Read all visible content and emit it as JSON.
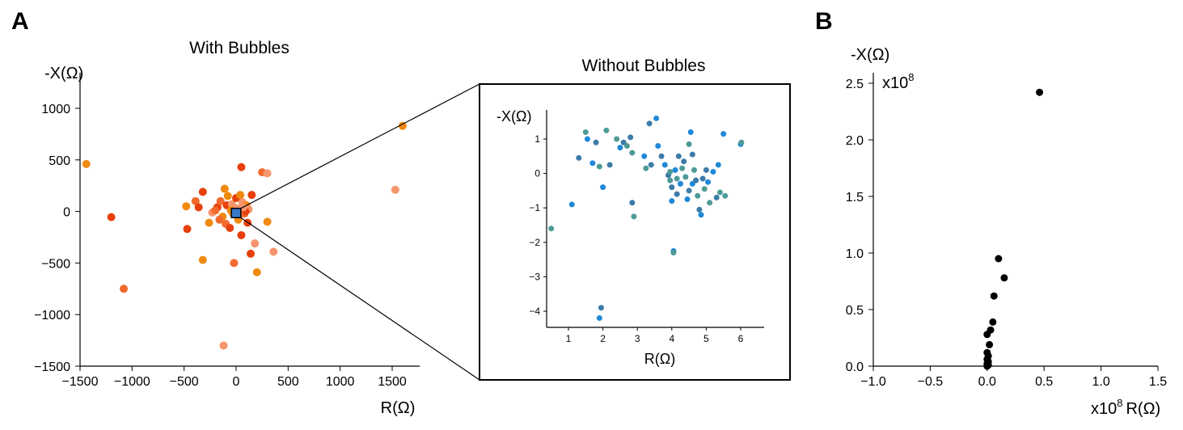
{
  "panels": {
    "a_letter": "A",
    "b_letter": "B"
  },
  "chart_data": [
    {
      "id": "with_bubbles",
      "type": "scatter",
      "title": "With Bubbles",
      "xlabel": "R(Ω)",
      "ylabel": "-X(Ω)",
      "xlim": [
        -1500,
        1750
      ],
      "ylim": [
        -1500,
        1350
      ],
      "xticks": [
        -1500,
        -1000,
        -500,
        0,
        500,
        1000,
        1500
      ],
      "xtick_labels": [
        "−1500",
        "−1000",
        "−500",
        "0",
        "500",
        "1000",
        "1500"
      ],
      "yticks": [
        -1500,
        -1000,
        -500,
        0,
        500,
        1000
      ],
      "ytick_labels": [
        "−1500",
        "−1000",
        "−500",
        "0",
        "500",
        "1000"
      ],
      "zoom_box": [
        -45,
        45,
        -60,
        30
      ],
      "colors": [
        "#e8400c",
        "#f08a0f",
        "#f7956c",
        "#f26a2d"
      ],
      "points": [
        [
          -1440,
          460,
          1
        ],
        [
          -1200,
          -55,
          0
        ],
        [
          -1080,
          -750,
          3
        ],
        [
          1600,
          830,
          1
        ],
        [
          1530,
          210,
          2
        ],
        [
          -470,
          -170,
          0
        ],
        [
          -480,
          50,
          1
        ],
        [
          -390,
          100,
          3
        ],
        [
          -360,
          40,
          0
        ],
        [
          -320,
          -470,
          1
        ],
        [
          -320,
          190,
          0
        ],
        [
          -230,
          -10,
          2
        ],
        [
          -180,
          40,
          0
        ],
        [
          -150,
          100,
          3
        ],
        [
          -130,
          -50,
          1
        ],
        [
          -110,
          220,
          1
        ],
        [
          -100,
          -120,
          3
        ],
        [
          -90,
          60,
          0
        ],
        [
          -60,
          -160,
          0
        ],
        [
          -40,
          70,
          2
        ],
        [
          -30,
          -20,
          1
        ],
        [
          -20,
          -500,
          3
        ],
        [
          0,
          130,
          0
        ],
        [
          10,
          30,
          2
        ],
        [
          20,
          -80,
          1
        ],
        [
          40,
          160,
          1
        ],
        [
          50,
          430,
          0
        ],
        [
          50,
          -230,
          0
        ],
        [
          60,
          90,
          2
        ],
        [
          80,
          -20,
          3
        ],
        [
          100,
          60,
          1
        ],
        [
          110,
          -110,
          0
        ],
        [
          120,
          20,
          2
        ],
        [
          140,
          -410,
          0
        ],
        [
          150,
          160,
          0
        ],
        [
          180,
          -310,
          2
        ],
        [
          200,
          -590,
          1
        ],
        [
          250,
          380,
          3
        ],
        [
          300,
          370,
          2
        ],
        [
          300,
          -100,
          1
        ],
        [
          360,
          -390,
          2
        ],
        [
          -120,
          -1300,
          2
        ],
        [
          -260,
          -110,
          1
        ],
        [
          -80,
          150,
          1
        ],
        [
          90,
          0,
          0
        ],
        [
          -200,
          10,
          3
        ],
        [
          30,
          -30,
          3
        ],
        [
          -50,
          10,
          1
        ],
        [
          70,
          40,
          2
        ],
        [
          -160,
          -80,
          3
        ]
      ]
    },
    {
      "id": "without_bubbles",
      "type": "scatter",
      "title": "Without Bubbles",
      "xlabel": "R(Ω)",
      "ylabel": "-X(Ω)",
      "xlim": [
        0.4,
        6.6
      ],
      "ylim": [
        -4.45,
        1.85
      ],
      "xticks": [
        1,
        2,
        3,
        4,
        5,
        6
      ],
      "xtick_labels": [
        "1",
        "2",
        "3",
        "4",
        "5",
        "6"
      ],
      "yticks": [
        -4,
        -3,
        -2,
        -1,
        0,
        1
      ],
      "ytick_labels": [
        "−4",
        "−3",
        "−2",
        "−1",
        "0",
        "1"
      ],
      "colors": [
        "#1f88d8",
        "#3c7aa8",
        "#4e9a96"
      ],
      "points": [
        [
          0.5,
          -1.6,
          2
        ],
        [
          1.1,
          -0.9,
          0
        ],
        [
          1.3,
          0.45,
          1
        ],
        [
          1.5,
          1.2,
          2
        ],
        [
          1.55,
          1.0,
          0
        ],
        [
          1.7,
          0.3,
          0
        ],
        [
          1.8,
          0.9,
          1
        ],
        [
          1.9,
          0.2,
          2
        ],
        [
          1.9,
          -4.2,
          0
        ],
        [
          1.95,
          -3.9,
          1
        ],
        [
          2.0,
          -0.4,
          0
        ],
        [
          2.1,
          1.25,
          2
        ],
        [
          2.2,
          0.25,
          1
        ],
        [
          2.4,
          1.0,
          2
        ],
        [
          2.5,
          0.75,
          0
        ],
        [
          2.6,
          0.9,
          1
        ],
        [
          2.7,
          0.8,
          2
        ],
        [
          2.8,
          1.05,
          1
        ],
        [
          2.85,
          0.6,
          2
        ],
        [
          2.85,
          -0.85,
          1
        ],
        [
          2.9,
          -1.25,
          2
        ],
        [
          3.2,
          0.5,
          0
        ],
        [
          3.25,
          0.15,
          2
        ],
        [
          3.35,
          1.45,
          1
        ],
        [
          3.4,
          0.25,
          1
        ],
        [
          3.55,
          1.6,
          0
        ],
        [
          3.6,
          0.8,
          0
        ],
        [
          3.7,
          0.5,
          1
        ],
        [
          3.8,
          0.25,
          0
        ],
        [
          3.9,
          -0.05,
          1
        ],
        [
          3.95,
          -0.2,
          2
        ],
        [
          4.0,
          -0.8,
          0
        ],
        [
          4.0,
          -0.4,
          1
        ],
        [
          4.05,
          -2.25,
          0
        ],
        [
          4.05,
          -2.3,
          2
        ],
        [
          4.1,
          0.1,
          0
        ],
        [
          4.15,
          -0.6,
          1
        ],
        [
          4.2,
          0.5,
          1
        ],
        [
          4.25,
          -0.3,
          0
        ],
        [
          4.3,
          0.15,
          2
        ],
        [
          4.35,
          0.35,
          1
        ],
        [
          4.4,
          -0.1,
          2
        ],
        [
          4.5,
          0.85,
          2
        ],
        [
          4.5,
          -0.5,
          1
        ],
        [
          4.55,
          1.2,
          0
        ],
        [
          4.6,
          -0.3,
          0
        ],
        [
          4.65,
          0.1,
          2
        ],
        [
          4.7,
          -0.2,
          1
        ],
        [
          4.75,
          -0.65,
          2
        ],
        [
          4.8,
          -1.05,
          1
        ],
        [
          4.85,
          -1.2,
          0
        ],
        [
          4.9,
          -0.15,
          1
        ],
        [
          4.95,
          -0.45,
          2
        ],
        [
          5.0,
          0.1,
          1
        ],
        [
          5.05,
          -0.25,
          0
        ],
        [
          5.1,
          -0.85,
          2
        ],
        [
          5.2,
          0.05,
          0
        ],
        [
          5.3,
          -0.7,
          1
        ],
        [
          5.35,
          0.25,
          0
        ],
        [
          5.4,
          -0.55,
          2
        ],
        [
          5.5,
          1.15,
          0
        ],
        [
          5.55,
          -0.65,
          2
        ],
        [
          6.0,
          0.85,
          0
        ],
        [
          6.02,
          0.9,
          2
        ],
        [
          4.6,
          0.55,
          1
        ],
        [
          3.95,
          0.05,
          2
        ],
        [
          4.45,
          -0.75,
          0
        ],
        [
          4.15,
          -0.15,
          2
        ]
      ]
    },
    {
      "id": "panel_b",
      "type": "scatter",
      "title": "",
      "xlabel": "R(Ω)",
      "xlabel_prefix": "x10",
      "xlabel_exp": "8",
      "ylabel": "-X(Ω)",
      "y_multiplier": "x10",
      "y_multiplier_exp": "8",
      "xlim": [
        -1.0,
        1.5
      ],
      "ylim": [
        0.0,
        2.5
      ],
      "xticks": [
        -1.0,
        -0.5,
        0.0,
        0.5,
        1.0,
        1.5
      ],
      "xtick_labels": [
        "−1.0",
        "−0.5",
        "0.0",
        "0.5",
        "1.0",
        "1.5"
      ],
      "yticks": [
        0.0,
        0.5,
        1.0,
        1.5,
        2.0,
        2.5
      ],
      "ytick_labels": [
        "0.0",
        "0.5",
        "1.0",
        "1.5",
        "2.0",
        "2.5"
      ],
      "color": "#000000",
      "points": [
        [
          0.46,
          2.42
        ],
        [
          0.1,
          0.95
        ],
        [
          0.15,
          0.78
        ],
        [
          0.06,
          0.62
        ],
        [
          0.05,
          0.39
        ],
        [
          0.03,
          0.32
        ],
        [
          0.0,
          0.28
        ],
        [
          0.02,
          0.19
        ],
        [
          0.0,
          0.12
        ],
        [
          0.01,
          0.09
        ],
        [
          0.0,
          0.06
        ],
        [
          0.01,
          0.04
        ],
        [
          0.0,
          0.02
        ],
        [
          0.01,
          0.01
        ],
        [
          0.0,
          0.0
        ]
      ]
    }
  ]
}
